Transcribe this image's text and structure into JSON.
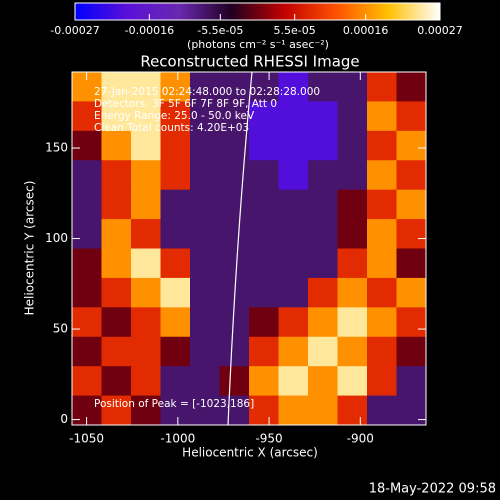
{
  "chart_data": {
    "type": "heatmap",
    "title": "Reconstructed RHESSI Image",
    "xlabel": "Heliocentric X (arcsec)",
    "ylabel": "Heliocentric Y (arcsec)",
    "xlim": [
      -1058,
      -864
    ],
    "ylim": [
      -3,
      192
    ],
    "xticks": [
      -1050,
      -1000,
      -950,
      -900
    ],
    "yticks": [
      0,
      50,
      100,
      150
    ],
    "colorbar": {
      "lim": [
        -0.00027,
        0.00027
      ],
      "ticks": [
        -0.00027,
        -0.00016,
        {
          "value": -5.5e-05,
          "label": "-5.5e-05"
        },
        {
          "value": 5.5e-05,
          "label": "5.5e-05"
        },
        0.00016,
        0.00027
      ],
      "unit": "(photons cm⁻² s⁻¹ asec⁻²)"
    },
    "colormap": [
      "#0000ff",
      "#5a10d8",
      "#6a28b0",
      "#200020",
      "#c00000",
      "#ff5000",
      "#ffc000",
      "#ffffff"
    ],
    "z": [
      [
        0.00016,
        0.00024,
        0.00024,
        0.00016,
        -8e-05,
        -8e-05,
        -8e-05,
        -0.0002,
        -8e-05,
        -8e-05,
        8e-05,
        0
      ],
      [
        8e-05,
        0.00024,
        0.00024,
        8e-05,
        -8e-05,
        -8e-05,
        -0.0002,
        -0.0002,
        -0.0002,
        -8e-05,
        0.00016,
        8e-05
      ],
      [
        0,
        0.00016,
        0.00024,
        8e-05,
        -8e-05,
        -8e-05,
        -0.0002,
        -0.0002,
        -0.0002,
        -8e-05,
        8e-05,
        0.00016
      ],
      [
        -8e-05,
        8e-05,
        0.00016,
        8e-05,
        -8e-05,
        -8e-05,
        -8e-05,
        -0.0002,
        -8e-05,
        -8e-05,
        0.00016,
        8e-05
      ],
      [
        -8e-05,
        8e-05,
        0.00016,
        -8e-05,
        -8e-05,
        -8e-05,
        -8e-05,
        -8e-05,
        -8e-05,
        0,
        8e-05,
        0.00016
      ],
      [
        -8e-05,
        0.00016,
        8e-05,
        -8e-05,
        -8e-05,
        -8e-05,
        -8e-05,
        -8e-05,
        -8e-05,
        0,
        0.00016,
        8e-05
      ],
      [
        0,
        0.00016,
        0.00024,
        8e-05,
        -8e-05,
        -8e-05,
        -8e-05,
        -8e-05,
        -8e-05,
        8e-05,
        0.00016,
        0
      ],
      [
        0,
        8e-05,
        0.00016,
        0.00024,
        -8e-05,
        -8e-05,
        -8e-05,
        -8e-05,
        8e-05,
        0.00016,
        8e-05,
        0.00016
      ],
      [
        8e-05,
        0,
        8e-05,
        0.00016,
        -8e-05,
        -8e-05,
        0,
        8e-05,
        0.00016,
        0.00024,
        0.00016,
        8e-05
      ],
      [
        0,
        8e-05,
        8e-05,
        0,
        -8e-05,
        -8e-05,
        8e-05,
        0.00016,
        0.00024,
        0.00016,
        8e-05,
        0
      ],
      [
        8e-05,
        0,
        8e-05,
        -8e-05,
        -8e-05,
        0,
        0.00016,
        0.00024,
        0.00016,
        0.00024,
        8e-05,
        -8e-05
      ],
      [
        0,
        8e-05,
        0,
        -8e-05,
        -8e-05,
        -8e-05,
        8e-05,
        0.00016,
        0.00016,
        8e-05,
        -8e-05,
        -8e-05
      ]
    ],
    "annotations": [
      "27-Jan-2015 02:24:48.000 to 02:28:28.000",
      "Detectors: 3F 5F 6F 7F 8F 9F, Att 0",
      "Energy Range: 25.0 - 50.0 keV",
      "Clean     Total counts: 4.20E+03",
      "Position of Peak = [-1023,186]"
    ],
    "footer": "18-May-2022 09:58"
  }
}
